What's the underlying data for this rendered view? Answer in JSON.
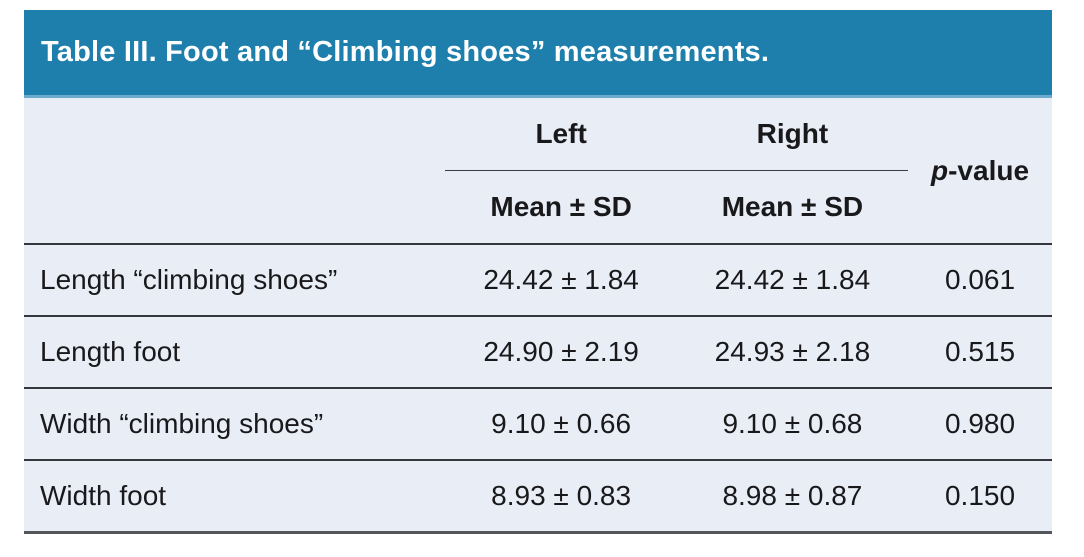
{
  "title": "Table III. Foot and “Climbing shoes” measurements.",
  "colors": {
    "header_bg": "#1e7fad",
    "header_edge": "#6cabcd",
    "header_text": "#ffffff",
    "body_bg": "#e9edf6",
    "text": "#19191b",
    "line": "#34383e"
  },
  "columns": {
    "group": [
      "Left",
      "Right"
    ],
    "subheader": "Mean ± SD",
    "p_prefix": "p",
    "p_suffix": "-value"
  },
  "rows": [
    {
      "label": "Length “climbing shoes”",
      "left": "24.42 ± 1.84",
      "right": "24.42 ± 1.84",
      "p": "0.061"
    },
    {
      "label": "Length foot",
      "left": "24.90 ± 2.19",
      "right": "24.93 ± 2.18",
      "p": "0.515"
    },
    {
      "label": "Width “climbing shoes”",
      "left": "9.10 ± 0.66",
      "right": "9.10 ± 0.68",
      "p": "0.980"
    },
    {
      "label": "Width foot",
      "left": "8.93 ± 0.83",
      "right": "8.98 ± 0.87",
      "p": "0.150"
    }
  ]
}
